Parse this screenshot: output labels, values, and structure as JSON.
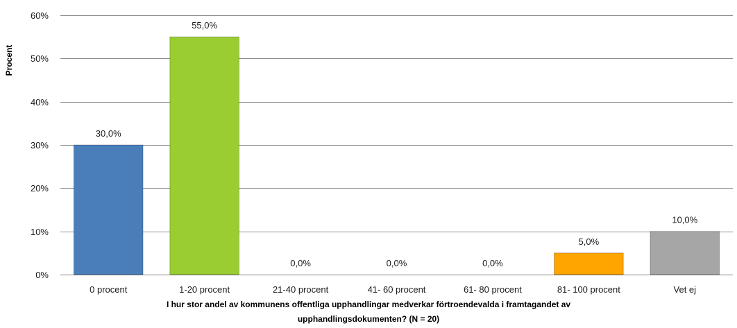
{
  "chart_data": {
    "type": "bar",
    "title": "",
    "ylabel": "Procent",
    "xlabel_lines": [
      "I hur stor andel av kommunens offentliga upphandlingar medverkar förtroendevalda i framtagandet av",
      "upphandlingsdokumenten? (N = 20)"
    ],
    "categories": [
      "0 procent",
      "1-20 procent",
      "21-40 procent",
      "41- 60 procent",
      "61- 80 procent",
      "81- 100 procent",
      "Vet ej"
    ],
    "values": [
      30.0,
      55.0,
      0.0,
      0.0,
      0.0,
      5.0,
      10.0
    ],
    "data_labels": [
      "30,0%",
      "55,0%",
      "0,0%",
      "0,0%",
      "0,0%",
      "5,0%",
      "10,0%"
    ],
    "bar_colors": [
      "#4a7ebb",
      "#9acd32",
      "#4a7ebb",
      "#4a7ebb",
      "#4a7ebb",
      "#ffa500",
      "#a6a6a6"
    ],
    "ylim": [
      0,
      60
    ],
    "yticks": [
      0,
      10,
      20,
      30,
      40,
      50,
      60
    ],
    "ytick_labels": [
      "0%",
      "10%",
      "20%",
      "30%",
      "40%",
      "50%",
      "60%"
    ],
    "grid": true,
    "legend": "none"
  }
}
